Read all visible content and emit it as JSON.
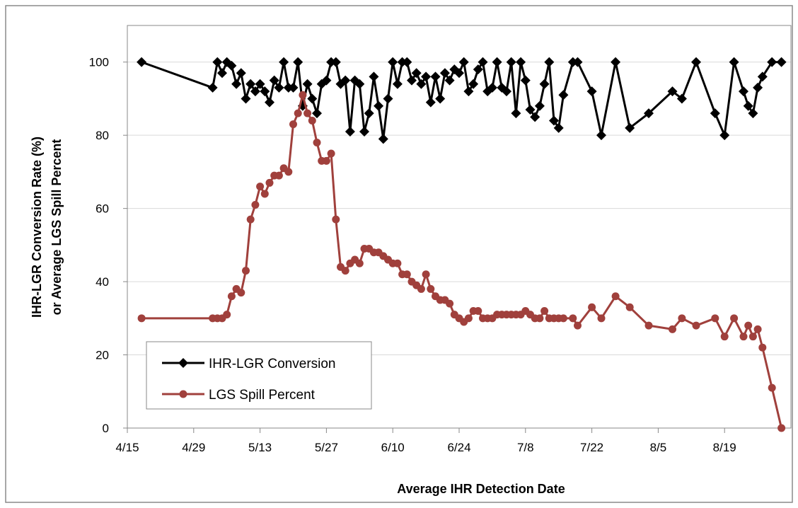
{
  "chart_data": {
    "type": "line",
    "x_label": "Average IHR Detection Date",
    "y_label": [
      "IHR-LGR Conversion Rate (%)",
      "or Average LGS Spill Percent"
    ],
    "x": [
      "4/18",
      "5/3",
      "5/4",
      "5/5",
      "5/6",
      "5/7",
      "5/8",
      "5/9",
      "5/10",
      "5/11",
      "5/12",
      "5/13",
      "5/14",
      "5/15",
      "5/16",
      "5/17",
      "5/18",
      "5/19",
      "5/20",
      "5/21",
      "5/22",
      "5/23",
      "5/24",
      "5/25",
      "5/26",
      "5/27",
      "5/28",
      "5/29",
      "5/30",
      "5/31",
      "6/1",
      "6/2",
      "6/3",
      "6/4",
      "6/5",
      "6/6",
      "6/7",
      "6/8",
      "6/9",
      "6/10",
      "6/11",
      "6/12",
      "6/13",
      "6/14",
      "6/15",
      "6/16",
      "6/17",
      "6/18",
      "6/19",
      "6/20",
      "6/21",
      "6/22",
      "6/23",
      "6/24",
      "6/25",
      "6/26",
      "6/27",
      "6/28",
      "6/29",
      "6/30",
      "7/1",
      "7/2",
      "7/3",
      "7/4",
      "7/5",
      "7/6",
      "7/7",
      "7/8",
      "7/9",
      "7/10",
      "7/11",
      "7/12",
      "7/13",
      "7/14",
      "7/15",
      "7/16",
      "7/18",
      "7/19",
      "7/22",
      "7/24",
      "7/27",
      "7/30",
      "8/3",
      "8/8",
      "8/10",
      "8/13",
      "8/17",
      "8/19",
      "8/21",
      "8/23",
      "8/24",
      "8/25",
      "8/26",
      "8/27",
      "8/29",
      "8/31"
    ],
    "series": [
      {
        "name": "IHR-LGR Conversion",
        "color": "#000000",
        "marker": "diamond",
        "values": [
          100,
          93,
          100,
          97,
          100,
          99,
          94,
          97,
          90,
          94,
          92,
          94,
          92,
          89,
          95,
          93,
          100,
          93,
          93,
          100,
          88,
          94,
          90,
          86,
          94,
          95,
          100,
          100,
          94,
          95,
          81,
          95,
          94,
          81,
          86,
          96,
          88,
          79,
          90,
          100,
          94,
          100,
          100,
          95,
          97,
          94,
          96,
          89,
          96,
          90,
          97,
          95,
          98,
          97,
          100,
          92,
          94,
          98,
          100,
          92,
          93,
          100,
          93,
          92,
          100,
          86,
          100,
          95,
          87,
          85,
          88,
          94,
          100,
          84,
          82,
          91,
          100,
          100,
          92,
          80,
          100,
          82,
          86,
          92,
          90,
          100,
          86,
          80,
          100,
          92,
          88,
          86,
          93,
          96,
          100,
          100
        ]
      },
      {
        "name": "LGS Spill Percent",
        "color": "#a0403c",
        "marker": "circle",
        "values": [
          30,
          30,
          30,
          30,
          31,
          36,
          38,
          37,
          43,
          57,
          61,
          66,
          64,
          67,
          69,
          69,
          71,
          70,
          83,
          86,
          91,
          86,
          84,
          78,
          73,
          73,
          75,
          57,
          44,
          43,
          45,
          46,
          45,
          49,
          49,
          48,
          48,
          47,
          46,
          45,
          45,
          42,
          42,
          40,
          39,
          38,
          42,
          38,
          36,
          35,
          35,
          34,
          31,
          30,
          29,
          30,
          32,
          32,
          30,
          30,
          30,
          31,
          31,
          31,
          31,
          31,
          31,
          32,
          31,
          30,
          30,
          32,
          30,
          30,
          30,
          30,
          30,
          28,
          33,
          30,
          36,
          33,
          28,
          27,
          30,
          28,
          30,
          25,
          30,
          25,
          28,
          25,
          27,
          22,
          11,
          0
        ]
      }
    ],
    "xlim": [
      "4/15",
      "9/2"
    ],
    "xticks": [
      "4/15",
      "4/29",
      "5/13",
      "5/27",
      "6/10",
      "6/24",
      "7/8",
      "7/22",
      "8/5",
      "8/19"
    ],
    "ylim": [
      0,
      110
    ],
    "yticks": [
      0,
      20,
      40,
      60,
      80,
      100
    ],
    "grid": true,
    "legend": "lower left"
  }
}
